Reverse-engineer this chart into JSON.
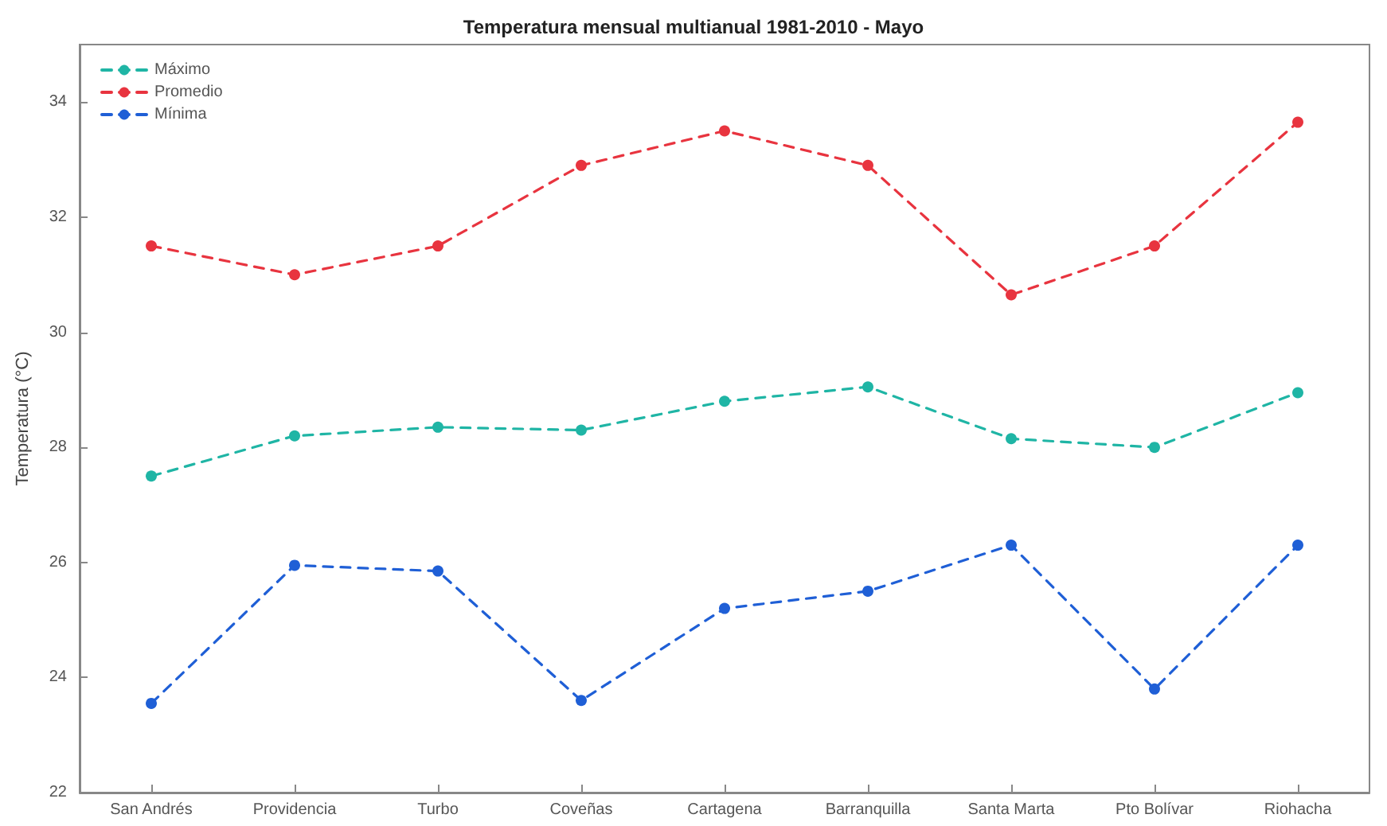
{
  "chart_data": {
    "type": "line",
    "title": "Temperatura mensual multianual 1981-2010 - Mayo",
    "ylabel": "Temperatura (°C)",
    "categories": [
      "San Andrés",
      "Providencia",
      "Turbo",
      "Coveñas",
      "Cartagena",
      "Barranquilla",
      "Santa Marta",
      "Pto Bolívar",
      "Riohacha"
    ],
    "series": [
      {
        "name": "Máximo",
        "color": "#1fb5a5",
        "values": [
          27.5,
          28.2,
          28.35,
          28.3,
          28.8,
          29.05,
          28.15,
          28.0,
          28.95
        ]
      },
      {
        "name": "Promedio",
        "color": "#e8343f",
        "values": [
          31.5,
          31.0,
          31.5,
          32.9,
          33.5,
          32.9,
          30.65,
          31.5,
          33.65
        ]
      },
      {
        "name": "Mínima",
        "color": "#1f5fd6",
        "values": [
          23.55,
          25.95,
          25.85,
          23.6,
          25.2,
          25.5,
          26.3,
          23.8,
          26.3
        ]
      }
    ],
    "ylim": [
      22,
      35
    ],
    "yticks": [
      22,
      24,
      26,
      28,
      30,
      32,
      34
    ],
    "grid": false,
    "legend": "top left",
    "marker": "circle",
    "line_style": "dashed"
  }
}
